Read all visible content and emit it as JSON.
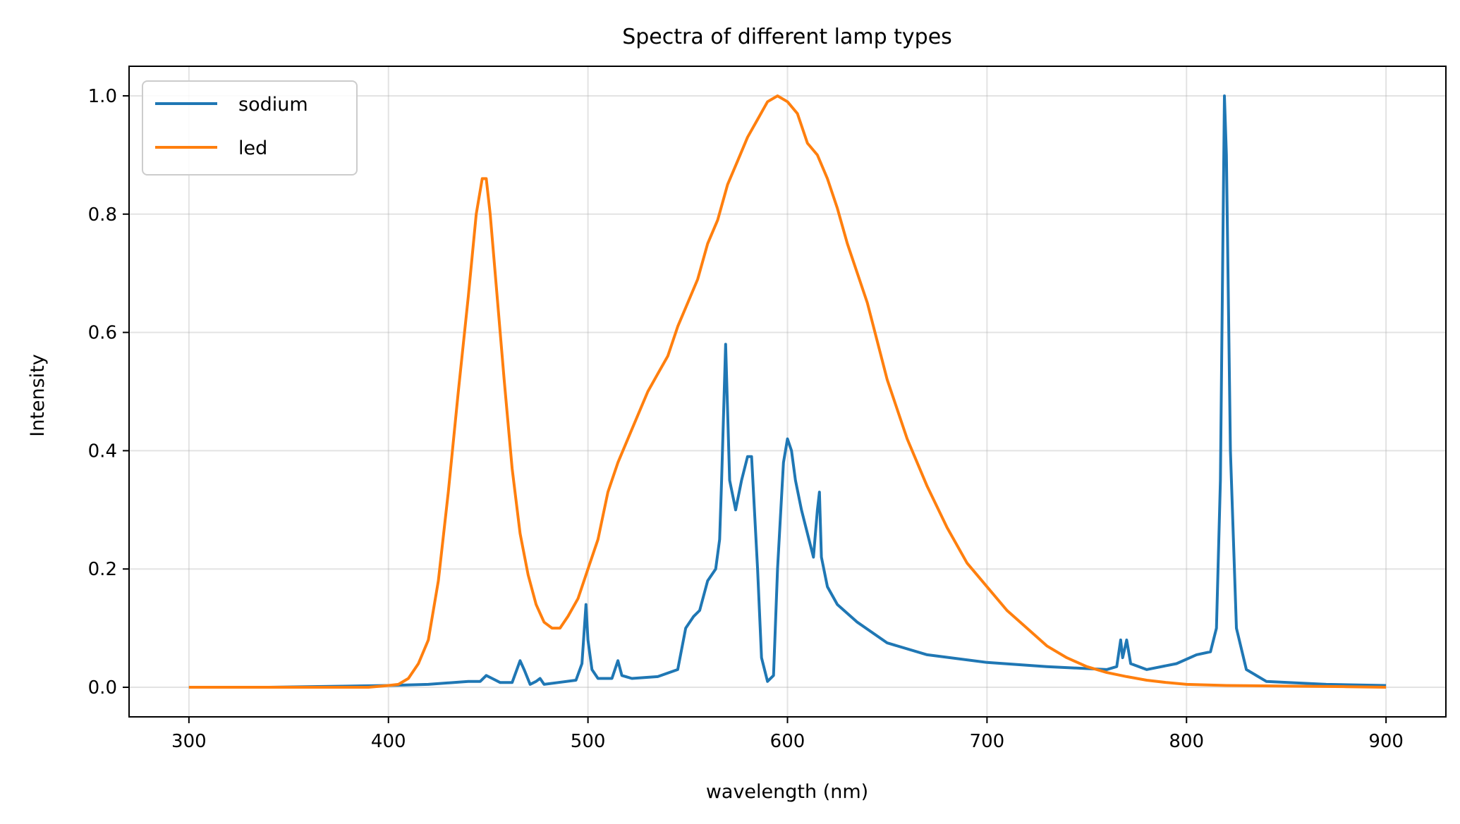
{
  "chart_data": {
    "type": "line",
    "title": "Spectra of different lamp types",
    "xlabel": "wavelength (nm)",
    "ylabel": "Intensity",
    "xlim": [
      270,
      930
    ],
    "ylim": [
      -0.05,
      1.05
    ],
    "xticks": [
      "300",
      "400",
      "500",
      "600",
      "700",
      "800",
      "900"
    ],
    "yticks": [
      "0.0",
      "0.2",
      "0.4",
      "0.6",
      "0.8",
      "1.0"
    ],
    "grid": true,
    "legend_position": "top-left",
    "series": [
      {
        "name": "sodium",
        "color": "#1f77b4",
        "points": [
          [
            300,
            0.0
          ],
          [
            340,
            0.0
          ],
          [
            380,
            0.002
          ],
          [
            400,
            0.003
          ],
          [
            420,
            0.005
          ],
          [
            440,
            0.01
          ],
          [
            446,
            0.01
          ],
          [
            449,
            0.02
          ],
          [
            452,
            0.015
          ],
          [
            456,
            0.008
          ],
          [
            462,
            0.008
          ],
          [
            466,
            0.045
          ],
          [
            468,
            0.03
          ],
          [
            471,
            0.005
          ],
          [
            474,
            0.01
          ],
          [
            476,
            0.015
          ],
          [
            478,
            0.005
          ],
          [
            485,
            0.008
          ],
          [
            494,
            0.012
          ],
          [
            497,
            0.04
          ],
          [
            499,
            0.14
          ],
          [
            500,
            0.08
          ],
          [
            502,
            0.03
          ],
          [
            505,
            0.015
          ],
          [
            512,
            0.015
          ],
          [
            515,
            0.045
          ],
          [
            517,
            0.02
          ],
          [
            522,
            0.015
          ],
          [
            535,
            0.018
          ],
          [
            545,
            0.03
          ],
          [
            549,
            0.1
          ],
          [
            553,
            0.12
          ],
          [
            556,
            0.13
          ],
          [
            560,
            0.18
          ],
          [
            564,
            0.2
          ],
          [
            566,
            0.25
          ],
          [
            567,
            0.35
          ],
          [
            569,
            0.58
          ],
          [
            571,
            0.35
          ],
          [
            574,
            0.3
          ],
          [
            577,
            0.35
          ],
          [
            580,
            0.39
          ],
          [
            582,
            0.39
          ],
          [
            585,
            0.2
          ],
          [
            587,
            0.05
          ],
          [
            590,
            0.01
          ],
          [
            593,
            0.02
          ],
          [
            595,
            0.2
          ],
          [
            598,
            0.38
          ],
          [
            600,
            0.42
          ],
          [
            602,
            0.4
          ],
          [
            604,
            0.35
          ],
          [
            607,
            0.3
          ],
          [
            610,
            0.26
          ],
          [
            613,
            0.22
          ],
          [
            615,
            0.3
          ],
          [
            616,
            0.33
          ],
          [
            617,
            0.22
          ],
          [
            620,
            0.17
          ],
          [
            625,
            0.14
          ],
          [
            635,
            0.11
          ],
          [
            650,
            0.075
          ],
          [
            670,
            0.055
          ],
          [
            700,
            0.042
          ],
          [
            730,
            0.035
          ],
          [
            760,
            0.03
          ],
          [
            765,
            0.035
          ],
          [
            767,
            0.08
          ],
          [
            768,
            0.05
          ],
          [
            770,
            0.08
          ],
          [
            772,
            0.04
          ],
          [
            780,
            0.03
          ],
          [
            795,
            0.04
          ],
          [
            805,
            0.055
          ],
          [
            812,
            0.06
          ],
          [
            815,
            0.1
          ],
          [
            817,
            0.35
          ],
          [
            819,
            1.0
          ],
          [
            820,
            0.9
          ],
          [
            822,
            0.4
          ],
          [
            825,
            0.1
          ],
          [
            830,
            0.03
          ],
          [
            840,
            0.01
          ],
          [
            870,
            0.005
          ],
          [
            900,
            0.003
          ]
        ]
      },
      {
        "name": "led",
        "color": "#ff7f0e",
        "points": [
          [
            300,
            0.0
          ],
          [
            330,
            0.0
          ],
          [
            360,
            0.0
          ],
          [
            390,
            0.0
          ],
          [
            400,
            0.003
          ],
          [
            405,
            0.005
          ],
          [
            410,
            0.015
          ],
          [
            415,
            0.04
          ],
          [
            420,
            0.08
          ],
          [
            425,
            0.18
          ],
          [
            430,
            0.33
          ],
          [
            435,
            0.5
          ],
          [
            440,
            0.66
          ],
          [
            444,
            0.8
          ],
          [
            447,
            0.86
          ],
          [
            449,
            0.86
          ],
          [
            451,
            0.8
          ],
          [
            454,
            0.68
          ],
          [
            458,
            0.52
          ],
          [
            462,
            0.37
          ],
          [
            466,
            0.26
          ],
          [
            470,
            0.19
          ],
          [
            474,
            0.14
          ],
          [
            478,
            0.11
          ],
          [
            482,
            0.1
          ],
          [
            486,
            0.1
          ],
          [
            490,
            0.12
          ],
          [
            495,
            0.15
          ],
          [
            500,
            0.2
          ],
          [
            505,
            0.25
          ],
          [
            510,
            0.33
          ],
          [
            515,
            0.38
          ],
          [
            520,
            0.42
          ],
          [
            525,
            0.46
          ],
          [
            530,
            0.5
          ],
          [
            535,
            0.53
          ],
          [
            540,
            0.56
          ],
          [
            545,
            0.61
          ],
          [
            550,
            0.65
          ],
          [
            555,
            0.69
          ],
          [
            560,
            0.75
          ],
          [
            565,
            0.79
          ],
          [
            570,
            0.85
          ],
          [
            575,
            0.89
          ],
          [
            580,
            0.93
          ],
          [
            585,
            0.96
          ],
          [
            590,
            0.99
          ],
          [
            595,
            1.0
          ],
          [
            600,
            0.99
          ],
          [
            605,
            0.97
          ],
          [
            610,
            0.92
          ],
          [
            615,
            0.9
          ],
          [
            620,
            0.86
          ],
          [
            625,
            0.81
          ],
          [
            630,
            0.75
          ],
          [
            640,
            0.65
          ],
          [
            650,
            0.52
          ],
          [
            660,
            0.42
          ],
          [
            670,
            0.34
          ],
          [
            680,
            0.27
          ],
          [
            690,
            0.21
          ],
          [
            700,
            0.17
          ],
          [
            710,
            0.13
          ],
          [
            720,
            0.1
          ],
          [
            730,
            0.07
          ],
          [
            740,
            0.05
          ],
          [
            750,
            0.035
          ],
          [
            760,
            0.025
          ],
          [
            770,
            0.018
          ],
          [
            780,
            0.012
          ],
          [
            790,
            0.008
          ],
          [
            800,
            0.005
          ],
          [
            820,
            0.003
          ],
          [
            850,
            0.002
          ],
          [
            880,
            0.001
          ],
          [
            900,
            0.0
          ]
        ]
      }
    ]
  }
}
